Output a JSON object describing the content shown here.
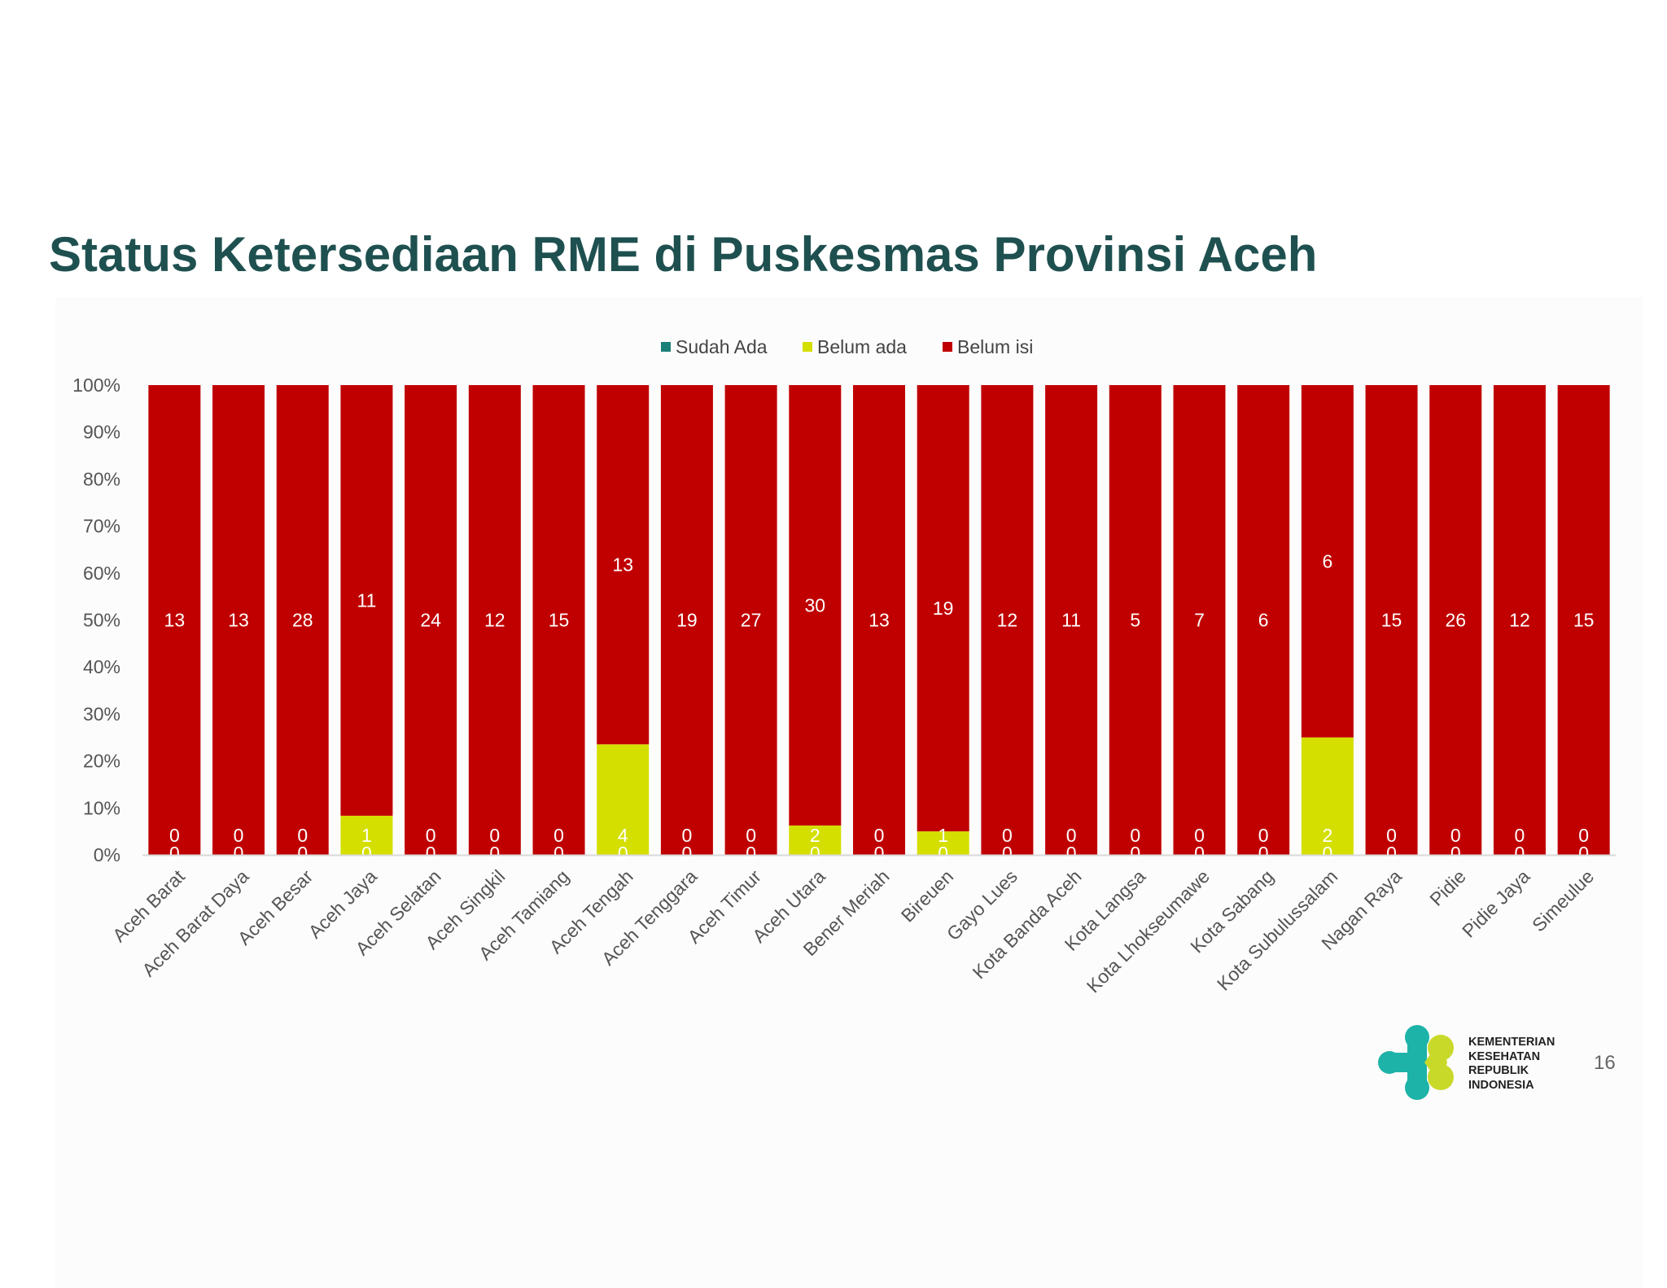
{
  "title": "Status Ketersediaan RME di Puskesmas Provinsi Aceh",
  "page_number": "16",
  "logo": {
    "lines": [
      "KEMENTERIAN",
      "KESEHATAN",
      "REPUBLIK",
      "INDONESIA"
    ],
    "colors": {
      "teal": "#1db3a8",
      "green": "#c9d92a"
    }
  },
  "chart_data": {
    "type": "bar",
    "stacked": "percent",
    "title": "",
    "xlabel": "",
    "ylabel": "",
    "ylim": [
      0,
      100
    ],
    "y_ticks": [
      "0%",
      "10%",
      "20%",
      "30%",
      "40%",
      "50%",
      "60%",
      "70%",
      "80%",
      "90%",
      "100%"
    ],
    "grid": false,
    "legend_position": "top-center",
    "categories": [
      "Aceh Barat",
      "Aceh Barat Daya",
      "Aceh Besar",
      "Aceh Jaya",
      "Aceh Selatan",
      "Aceh Singkil",
      "Aceh Tamiang",
      "Aceh Tengah",
      "Aceh Tenggara",
      "Aceh Timur",
      "Aceh Utara",
      "Bener Meriah",
      "Bireuen",
      "Gayo Lues",
      "Kota Banda Aceh",
      "Kota Langsa",
      "Kota Lhokseumawe",
      "Kota Sabang",
      "Kota Subulussalam",
      "Nagan Raya",
      "Pidie",
      "Pidie Jaya",
      "Simeulue"
    ],
    "series": [
      {
        "name": "Sudah Ada",
        "color": "#1a7f78",
        "values": [
          0,
          0,
          0,
          0,
          0,
          0,
          0,
          0,
          0,
          0,
          0,
          0,
          0,
          0,
          0,
          0,
          0,
          0,
          0,
          0,
          0,
          0,
          0
        ]
      },
      {
        "name": "Belum ada",
        "color": "#d4df00",
        "values": [
          0,
          0,
          0,
          1,
          0,
          0,
          0,
          4,
          0,
          0,
          2,
          0,
          1,
          0,
          0,
          0,
          0,
          0,
          2,
          0,
          0,
          0,
          0
        ]
      },
      {
        "name": "Belum isi",
        "color": "#c00000",
        "values": [
          13,
          13,
          28,
          11,
          24,
          12,
          15,
          13,
          19,
          27,
          30,
          13,
          19,
          12,
          11,
          5,
          7,
          6,
          6,
          15,
          26,
          12,
          15
        ]
      }
    ]
  }
}
